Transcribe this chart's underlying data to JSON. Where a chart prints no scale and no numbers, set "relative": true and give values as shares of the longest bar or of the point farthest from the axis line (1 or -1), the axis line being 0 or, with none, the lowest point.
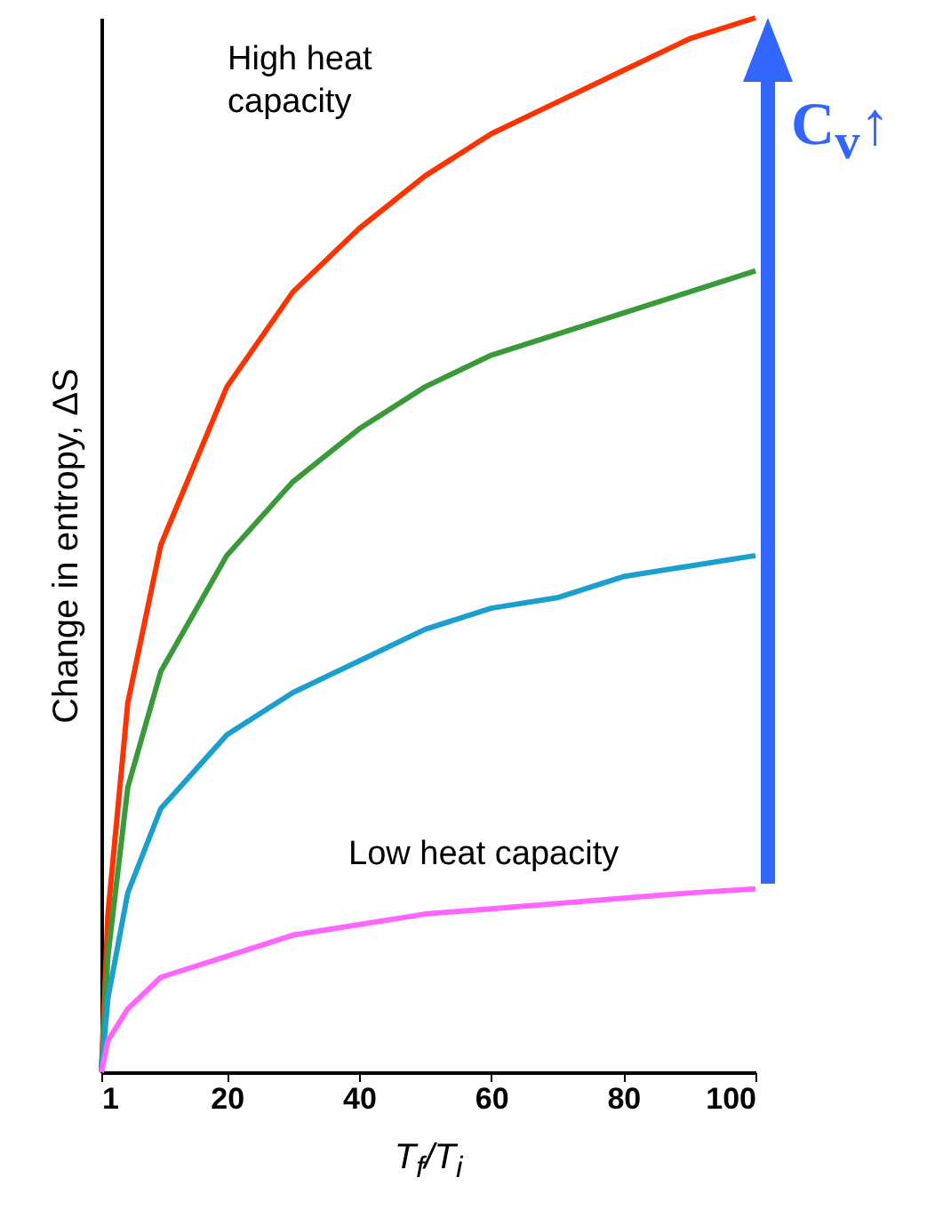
{
  "chart_data": {
    "type": "line",
    "relative": true,
    "xlabel": "T$_{f}$/T$_{i}$",
    "ylabel": "Change in entropy, ΔS",
    "x": [
      1,
      2,
      5,
      10,
      20,
      30,
      40,
      50,
      60,
      70,
      80,
      90,
      100
    ],
    "xlim": [
      1,
      100
    ],
    "xticks": [
      1,
      20,
      40,
      60,
      80,
      100
    ],
    "series": [
      {
        "color": "#ff3300",
        "values": [
          0,
          0.15,
          0.35,
          0.5,
          0.65,
          0.74,
          0.8,
          0.85,
          0.89,
          0.92,
          0.95,
          0.98,
          1
        ]
      },
      {
        "color": "#3a9a3a",
        "values": [
          0,
          0.11,
          0.27,
          0.38,
          0.49,
          0.56,
          0.61,
          0.65,
          0.68,
          0.7,
          0.72,
          0.74,
          0.76
        ]
      },
      {
        "color": "#1a9fce",
        "values": [
          0,
          0.07,
          0.17,
          0.25,
          0.32,
          0.36,
          0.39,
          0.42,
          0.44,
          0.45,
          0.47,
          0.48,
          0.49
        ]
      },
      {
        "color": "#ff66ff",
        "values": [
          0,
          0.03,
          0.06,
          0.09,
          0.11,
          0.13,
          0.14,
          0.15,
          0.155,
          0.16,
          0.165,
          0.17,
          0.174
        ]
      }
    ],
    "annotations": [
      "High heat capacity",
      "Low heat capacity",
      "C$_{v}$↑"
    ],
    "marker": "none",
    "line_style": "solid"
  }
}
